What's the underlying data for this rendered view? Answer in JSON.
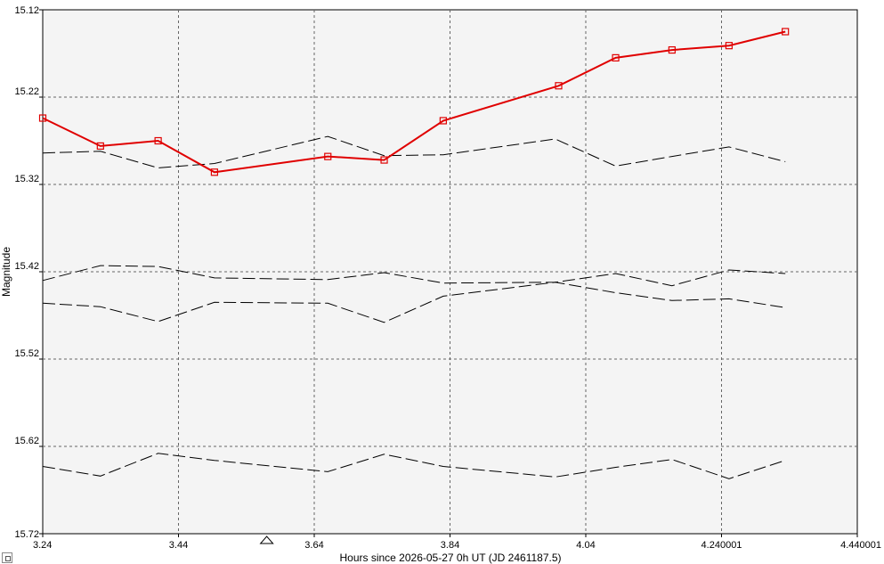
{
  "chart_data": {
    "type": "line",
    "xlabel": "Hours since 2026-05-27 0h UT (JD 2461187.5)",
    "ylabel": "Magnitude",
    "xlim": [
      3.24,
      4.440001
    ],
    "ylim": [
      15.12,
      15.72
    ],
    "y_inverted": true,
    "grid": true,
    "x_ticks": [
      "3.24",
      "3.44",
      "3.64",
      "3.84",
      "4.04",
      "4.240001",
      "4.440001"
    ],
    "x_tick_values": [
      3.24,
      3.44,
      3.64,
      3.84,
      4.04,
      4.240001,
      4.440001
    ],
    "y_ticks": [
      "15.12",
      "15.22",
      "15.32",
      "15.42",
      "15.52",
      "15.62",
      "15.72"
    ],
    "y_tick_values": [
      15.12,
      15.22,
      15.32,
      15.42,
      15.52,
      15.62,
      15.72
    ],
    "marker_x": 3.57,
    "series": [
      {
        "style": "target",
        "color": "#e00000",
        "x": [
          3.24,
          3.325,
          3.41,
          3.493,
          3.66,
          3.743,
          3.83,
          4.0,
          4.084,
          4.167,
          4.251,
          4.334
        ],
        "y": [
          15.244,
          15.276,
          15.27,
          15.306,
          15.288,
          15.292,
          15.247,
          15.207,
          15.175,
          15.166,
          15.161,
          15.145
        ]
      },
      {
        "style": "comparison",
        "color": "#000000",
        "x": [
          3.24,
          3.325,
          3.41,
          3.493,
          3.66,
          3.743,
          3.83,
          3.995,
          4.084,
          4.167,
          4.251,
          4.334
        ],
        "y": [
          15.284,
          15.282,
          15.301,
          15.296,
          15.265,
          15.287,
          15.286,
          15.268,
          15.299,
          15.288,
          15.277,
          15.294
        ]
      },
      {
        "style": "comparison",
        "color": "#000000",
        "x": [
          3.24,
          3.325,
          3.41,
          3.493,
          3.66,
          3.743,
          3.83,
          3.995,
          4.084,
          4.167,
          4.251,
          4.334
        ],
        "y": [
          15.43,
          15.413,
          15.414,
          15.427,
          15.429,
          15.421,
          15.433,
          15.432,
          15.422,
          15.436,
          15.418,
          15.422
        ]
      },
      {
        "style": "comparison",
        "color": "#000000",
        "x": [
          3.24,
          3.325,
          3.41,
          3.493,
          3.66,
          3.743,
          3.83,
          3.995,
          4.084,
          4.167,
          4.251,
          4.334
        ],
        "y": [
          15.456,
          15.46,
          15.477,
          15.455,
          15.456,
          15.478,
          15.448,
          15.432,
          15.444,
          15.453,
          15.451,
          15.461
        ]
      },
      {
        "style": "comparison",
        "color": "#000000",
        "x": [
          3.24,
          3.325,
          3.41,
          3.493,
          3.66,
          3.743,
          3.83,
          3.995,
          4.084,
          4.167,
          4.251,
          4.334
        ],
        "y": [
          15.643,
          15.654,
          15.628,
          15.636,
          15.649,
          15.629,
          15.643,
          15.655,
          15.644,
          15.635,
          15.657,
          15.636
        ]
      }
    ]
  }
}
